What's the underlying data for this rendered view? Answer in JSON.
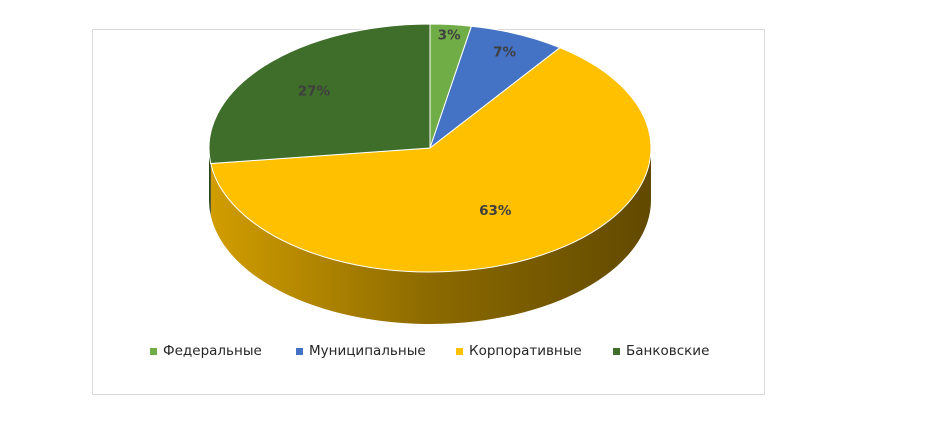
{
  "chart_data": {
    "type": "pie",
    "style": "3d",
    "title": "",
    "start_angle_deg": 0,
    "direction": "clockwise",
    "slices": [
      {
        "name": "Федеральные",
        "value": 3,
        "label": "3%",
        "color": "#70ad47"
      },
      {
        "name": "Муниципальные",
        "value": 7,
        "label": "7%",
        "color": "#4472c4"
      },
      {
        "name": "Корпоративные",
        "value": 63,
        "label": "63%",
        "color": "#ffc000"
      },
      {
        "name": "Банковские",
        "value": 27,
        "label": "27%",
        "color": "#3f6e2a"
      }
    ],
    "legend_position": "bottom"
  }
}
